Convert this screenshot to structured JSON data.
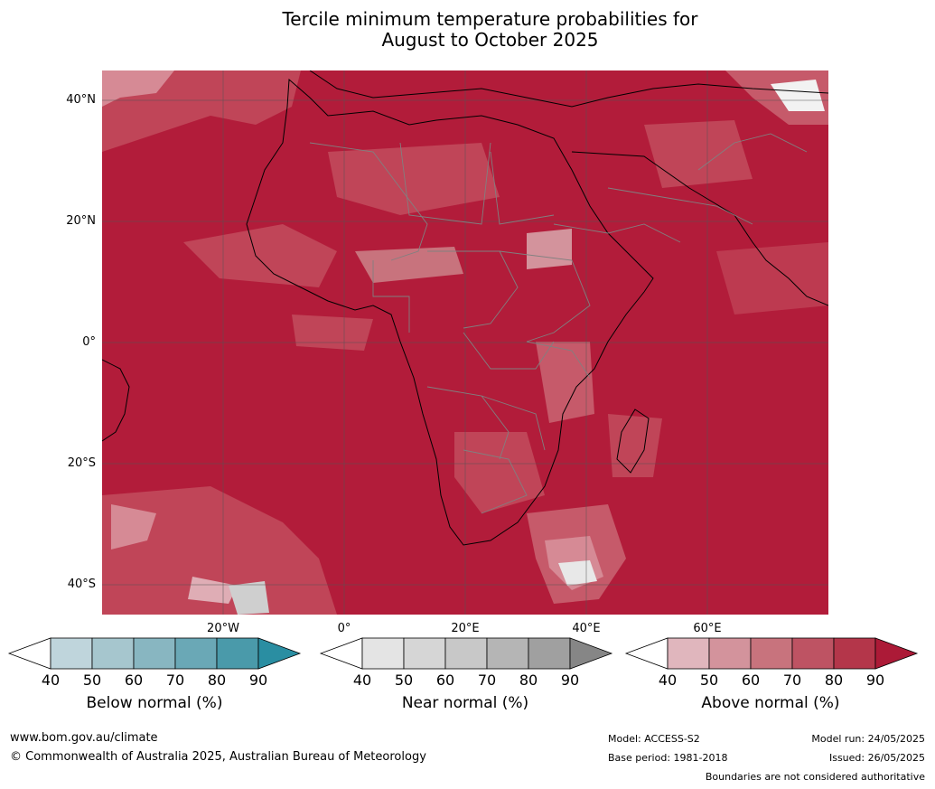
{
  "title_line1": "Tercile minimum temperature probabilities for",
  "title_line2": "August to October 2025",
  "lat_labels": [
    "40°N",
    "20°N",
    "0°",
    "20°S",
    "40°S"
  ],
  "lon_labels": [
    "20°W",
    "0°",
    "20°E",
    "40°E",
    "60°E"
  ],
  "legends": [
    {
      "caption": "Below normal (%)",
      "ticks": [
        "40",
        "50",
        "60",
        "70",
        "80",
        "90"
      ],
      "colors": [
        "#ffffff",
        "#bfd5dc",
        "#a6c6ce",
        "#88b6c1",
        "#6aa8b6",
        "#4a9aaa",
        "#2a8ea2"
      ]
    },
    {
      "caption": "Near normal (%)",
      "ticks": [
        "40",
        "50",
        "60",
        "70",
        "80",
        "90"
      ],
      "colors": [
        "#ffffff",
        "#e4e4e4",
        "#d6d6d6",
        "#c8c8c8",
        "#b5b5b5",
        "#a0a0a0",
        "#868686"
      ]
    },
    {
      "caption": "Above normal (%)",
      "ticks": [
        "40",
        "50",
        "60",
        "70",
        "80",
        "90"
      ],
      "colors": [
        "#ffffff",
        "#e0b6bd",
        "#d3939c",
        "#c8737d",
        "#be5363",
        "#b4364a",
        "#ac1a37"
      ]
    }
  ],
  "footer": {
    "website": "www.bom.gov.au/climate",
    "copyright": "© Commonwealth of Australia 2025, Australian Bureau of Meteorology",
    "model": "Model: ACCESS-S2",
    "base_period": "Base period: 1981-2018",
    "model_run": "Model run: 24/05/2025",
    "issued": "Issued: 26/05/2025",
    "disclaimer": "Boundaries are not considered authoritative"
  },
  "colors": {
    "above_90": "#b21c3a",
    "above_80": "#bd3a50",
    "above_70": "#c65a6a",
    "above_60": "#d2828e",
    "above_50": "#dfadb5",
    "grid": "#555555"
  }
}
